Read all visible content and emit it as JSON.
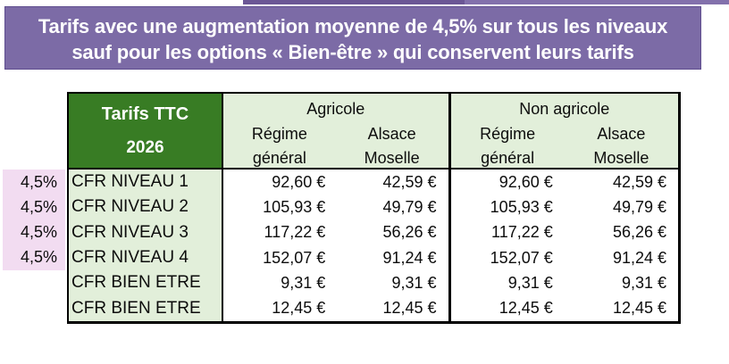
{
  "banner": {
    "line1": "Tarifs avec une augmentation moyenne de 4,5% sur tous les niveaux",
    "line2": "sauf pour les options « Bien-être » qui conservent leurs tarifs"
  },
  "table": {
    "corner": {
      "title": "Tarifs TTC",
      "year": "2026"
    },
    "groups": [
      {
        "label": "Agricole",
        "columns": [
          "Régime général",
          "Alsace Moselle"
        ]
      },
      {
        "label": "Non agricole",
        "columns": [
          "Régime général",
          "Alsace Moselle"
        ]
      }
    ],
    "rows": [
      {
        "increase": "4,5%",
        "label": "CFR NIVEAU 1",
        "values": [
          "92,60 €",
          "42,59 €",
          "92,60 €",
          "42,59 €"
        ]
      },
      {
        "increase": "4,5%",
        "label": "CFR NIVEAU 2",
        "values": [
          "105,93 €",
          "49,79 €",
          "105,93 €",
          "49,79 €"
        ]
      },
      {
        "increase": "4,5%",
        "label": "CFR NIVEAU 3",
        "values": [
          "117,22 €",
          "56,26 €",
          "117,22 €",
          "56,26 €"
        ]
      },
      {
        "increase": "4,5%",
        "label": "CFR NIVEAU 4",
        "values": [
          "152,07 €",
          "91,24 €",
          "152,07 €",
          "91,24 €"
        ]
      },
      {
        "increase": "",
        "label": "CFR BIEN ETRE",
        "values": [
          "9,31 €",
          "9,31 €",
          "9,31 €",
          "9,31 €"
        ]
      },
      {
        "increase": "",
        "label": "CFR BIEN ETRE",
        "values": [
          "12,45 €",
          "12,45 €",
          "12,45 €",
          "12,45 €"
        ]
      }
    ]
  },
  "colors": {
    "banner_bg": "#7c6ba6",
    "banner_border": "#5e4c8e",
    "strip": "#8371ac",
    "dark_green": "#387c24",
    "light_green": "#e2efda",
    "pink": "#f2dcf1",
    "line": "#000000"
  }
}
